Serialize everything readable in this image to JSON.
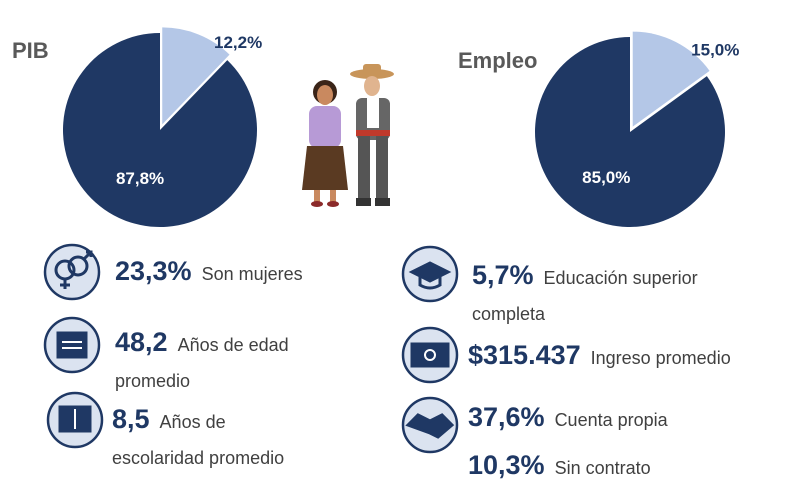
{
  "chart_data": [
    {
      "type": "pie",
      "title": "PIB",
      "values": [
        12.2,
        87.8
      ],
      "value_labels": [
        "12,2%",
        "87,8%"
      ],
      "colors": [
        "#b4c7e7",
        "#1f3864"
      ]
    },
    {
      "type": "pie",
      "title": "Empleo",
      "values": [
        15.0,
        85.0
      ],
      "value_labels": [
        "15,0%",
        "85,0%"
      ],
      "colors": [
        "#b4c7e7",
        "#1f3864"
      ]
    }
  ],
  "stats": [
    {
      "value": "23,3%",
      "text": "Son mujeres"
    },
    {
      "value": "48,2",
      "text": "Años de edad promedio"
    },
    {
      "value": "8,5",
      "text": "Años de escolaridad promedio"
    },
    {
      "value": "5,7%",
      "text": "Educación superior completa"
    },
    {
      "value": "$315.437",
      "text": "Ingreso promedio"
    },
    {
      "value": "37,6%",
      "text": "Cuenta propia"
    },
    {
      "value": "10,3%",
      "text": "Sin contrato"
    }
  ]
}
